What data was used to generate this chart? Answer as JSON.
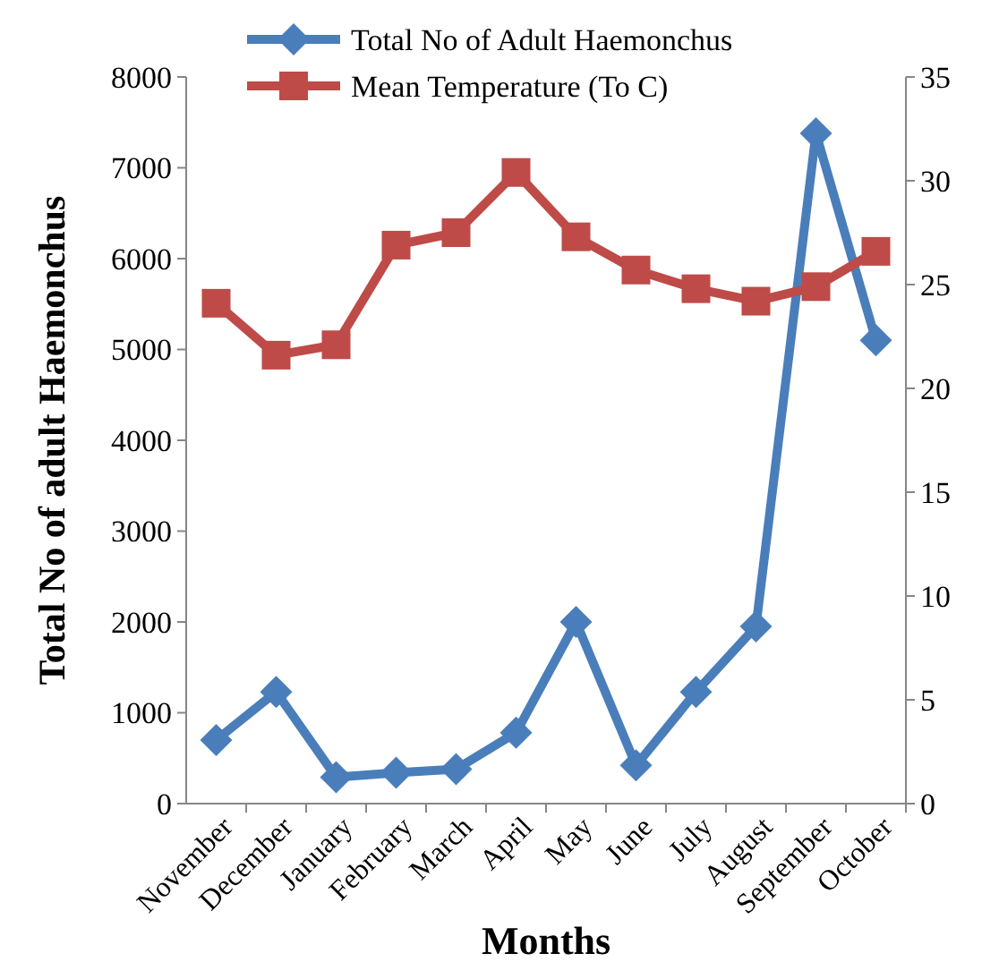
{
  "chart_data": {
    "type": "line",
    "xlabel": "Months",
    "ylabel": "Total No of adult Haemonchus",
    "categories": [
      "November",
      "December",
      "January",
      "February",
      "March",
      "April",
      "May",
      "June",
      "July",
      "August",
      "September",
      "October"
    ],
    "series": [
      {
        "name": "Total No of Adult Haemonchus",
        "color": "#4a7ebb",
        "marker": "diamond",
        "values": [
          700,
          1230,
          290,
          340,
          380,
          780,
          2000,
          420,
          1230,
          1950,
          7380,
          5100
        ]
      },
      {
        "name": "Mean Temperature (To C)",
        "color": "#be4b48",
        "marker": "square",
        "axis": "y2",
        "values": [
          24.1,
          21.6,
          22.1,
          26.9,
          27.5,
          30.4,
          27.3,
          25.7,
          24.8,
          24.2,
          24.9,
          26.6
        ]
      }
    ],
    "ylim": [
      0,
      8000
    ],
    "yticks": [
      0,
      1000,
      2000,
      3000,
      4000,
      5000,
      6000,
      7000,
      8000
    ],
    "y2lim": [
      0,
      35
    ],
    "y2ticks": [
      0,
      5,
      10,
      15,
      20,
      25,
      30,
      35
    ],
    "legend": "top",
    "grid": false,
    "line_style": "solid"
  }
}
